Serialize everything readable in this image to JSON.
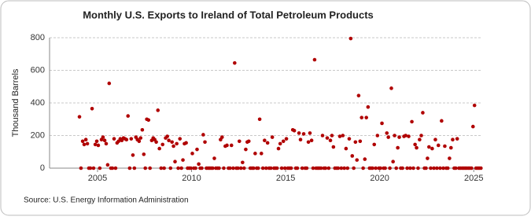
{
  "chart_data": {
    "type": "scatter",
    "title": "Monthly U.S. Exports to Ireland of Total Petroleum Products",
    "y_label": "Thousand Barrels",
    "source": "Source: U.S. Energy Information Administration",
    "color": "#b00000",
    "grid": true,
    "xlim": [
      2002.45,
      2025.45
    ],
    "ylim": [
      0,
      800
    ],
    "xticks": [
      2005,
      2010,
      2015,
      2020,
      2025
    ],
    "yticks": [
      0,
      200,
      400,
      600,
      800
    ],
    "x": [
      2004.04,
      2004.12,
      2004.21,
      2004.29,
      2004.38,
      2004.46,
      2004.54,
      2004.62,
      2004.71,
      2004.79,
      2004.88,
      2004.96,
      2005.04,
      2005.12,
      2005.21,
      2005.29,
      2005.38,
      2005.46,
      2005.54,
      2005.62,
      2005.71,
      2005.79,
      2005.88,
      2005.96,
      2006.04,
      2006.12,
      2006.21,
      2006.29,
      2006.38,
      2006.46,
      2006.54,
      2006.62,
      2006.71,
      2006.79,
      2006.88,
      2006.96,
      2007.04,
      2007.12,
      2007.21,
      2007.29,
      2007.38,
      2007.46,
      2007.54,
      2007.62,
      2007.71,
      2007.79,
      2007.88,
      2007.96,
      2008.04,
      2008.12,
      2008.21,
      2008.29,
      2008.38,
      2008.46,
      2008.54,
      2008.62,
      2008.71,
      2008.79,
      2008.88,
      2008.96,
      2009.04,
      2009.12,
      2009.21,
      2009.29,
      2009.38,
      2009.46,
      2009.54,
      2009.62,
      2009.71,
      2009.79,
      2009.88,
      2009.96,
      2010.04,
      2010.12,
      2010.21,
      2010.29,
      2010.38,
      2010.46,
      2010.54,
      2010.62,
      2010.71,
      2010.79,
      2010.88,
      2010.96,
      2011.04,
      2011.12,
      2011.21,
      2011.29,
      2011.38,
      2011.46,
      2011.54,
      2011.62,
      2011.71,
      2011.79,
      2011.88,
      2011.96,
      2012.04,
      2012.12,
      2012.21,
      2012.29,
      2012.38,
      2012.46,
      2012.54,
      2012.62,
      2012.71,
      2012.79,
      2012.88,
      2012.96,
      2013.04,
      2013.12,
      2013.21,
      2013.29,
      2013.38,
      2013.46,
      2013.54,
      2013.62,
      2013.71,
      2013.79,
      2013.88,
      2013.96,
      2014.04,
      2014.12,
      2014.21,
      2014.29,
      2014.38,
      2014.46,
      2014.54,
      2014.62,
      2014.71,
      2014.79,
      2014.88,
      2014.96,
      2015.04,
      2015.12,
      2015.21,
      2015.29,
      2015.38,
      2015.46,
      2015.54,
      2015.62,
      2015.71,
      2015.79,
      2015.88,
      2015.96,
      2016.04,
      2016.12,
      2016.21,
      2016.29,
      2016.38,
      2016.46,
      2016.54,
      2016.62,
      2016.71,
      2016.79,
      2016.88,
      2016.96,
      2017.04,
      2017.12,
      2017.21,
      2017.29,
      2017.38,
      2017.46,
      2017.54,
      2017.62,
      2017.71,
      2017.79,
      2017.88,
      2017.96,
      2018.04,
      2018.12,
      2018.21,
      2018.29,
      2018.38,
      2018.46,
      2018.54,
      2018.62,
      2018.71,
      2018.79,
      2018.88,
      2018.96,
      2019.04,
      2019.12,
      2019.21,
      2019.29,
      2019.38,
      2019.46,
      2019.54,
      2019.62,
      2019.71,
      2019.79,
      2019.88,
      2019.96,
      2020.04,
      2020.12,
      2020.21,
      2020.29,
      2020.38,
      2020.46,
      2020.54,
      2020.62,
      2020.71,
      2020.79,
      2020.88,
      2020.96,
      2021.04,
      2021.12,
      2021.21,
      2021.29,
      2021.38,
      2021.46,
      2021.54,
      2021.62,
      2021.71,
      2021.79,
      2021.88,
      2021.96,
      2022.04,
      2022.12,
      2022.21,
      2022.29,
      2022.38,
      2022.46,
      2022.54,
      2022.62,
      2022.71,
      2022.79,
      2022.88,
      2022.96,
      2023.04,
      2023.12,
      2023.21,
      2023.29,
      2023.38,
      2023.46,
      2023.54,
      2023.62,
      2023.71,
      2023.79,
      2023.88,
      2023.96,
      2024.04,
      2024.12,
      2024.21,
      2024.29,
      2024.38,
      2024.46,
      2024.54,
      2024.62,
      2024.71,
      2024.79,
      2024.88,
      2024.96,
      2025.04,
      2025.12,
      2025.21,
      2025.29,
      2025.38
    ],
    "values": [
      315,
      0,
      165,
      145,
      175,
      150,
      0,
      0,
      365,
      0,
      145,
      165,
      140,
      0,
      175,
      190,
      170,
      150,
      20,
      520,
      0,
      0,
      180,
      0,
      155,
      165,
      180,
      170,
      185,
      180,
      175,
      320,
      0,
      180,
      80,
      0,
      190,
      175,
      165,
      185,
      235,
      85,
      0,
      300,
      295,
      0,
      170,
      185,
      175,
      160,
      355,
      120,
      0,
      145,
      0,
      185,
      195,
      170,
      0,
      160,
      135,
      40,
      150,
      0,
      180,
      0,
      50,
      150,
      155,
      0,
      0,
      0,
      90,
      0,
      0,
      115,
      25,
      0,
      0,
      205,
      160,
      0,
      0,
      0,
      0,
      0,
      60,
      0,
      0,
      0,
      175,
      190,
      0,
      135,
      140,
      0,
      0,
      140,
      0,
      645,
      0,
      0,
      165,
      0,
      35,
      0,
      115,
      160,
      165,
      0,
      0,
      0,
      90,
      0,
      0,
      300,
      90,
      0,
      170,
      0,
      155,
      0,
      0,
      190,
      0,
      0,
      0,
      120,
      150,
      0,
      165,
      0,
      180,
      0,
      0,
      0,
      235,
      230,
      0,
      0,
      215,
      175,
      0,
      210,
      0,
      0,
      160,
      215,
      170,
      0,
      665,
      0,
      0,
      0,
      0,
      200,
      0,
      0,
      185,
      0,
      170,
      200,
      130,
      0,
      0,
      0,
      195,
      0,
      200,
      0,
      120,
      0,
      180,
      795,
      75,
      0,
      160,
      50,
      445,
      165,
      310,
      0,
      55,
      310,
      375,
      0,
      0,
      0,
      145,
      0,
      200,
      0,
      0,
      275,
      0,
      0,
      215,
      190,
      0,
      490,
      40,
      200,
      0,
      125,
      190,
      0,
      0,
      195,
      200,
      0,
      195,
      0,
      285,
      0,
      145,
      125,
      0,
      175,
      200,
      340,
      0,
      0,
      60,
      130,
      0,
      120,
      0,
      175,
      0,
      140,
      0,
      290,
      0,
      135,
      0,
      0,
      60,
      125,
      175,
      0,
      0,
      180,
      0,
      0,
      0,
      0,
      0,
      0,
      0,
      0,
      0,
      255,
      385,
      0,
      0,
      0,
      0
    ]
  }
}
